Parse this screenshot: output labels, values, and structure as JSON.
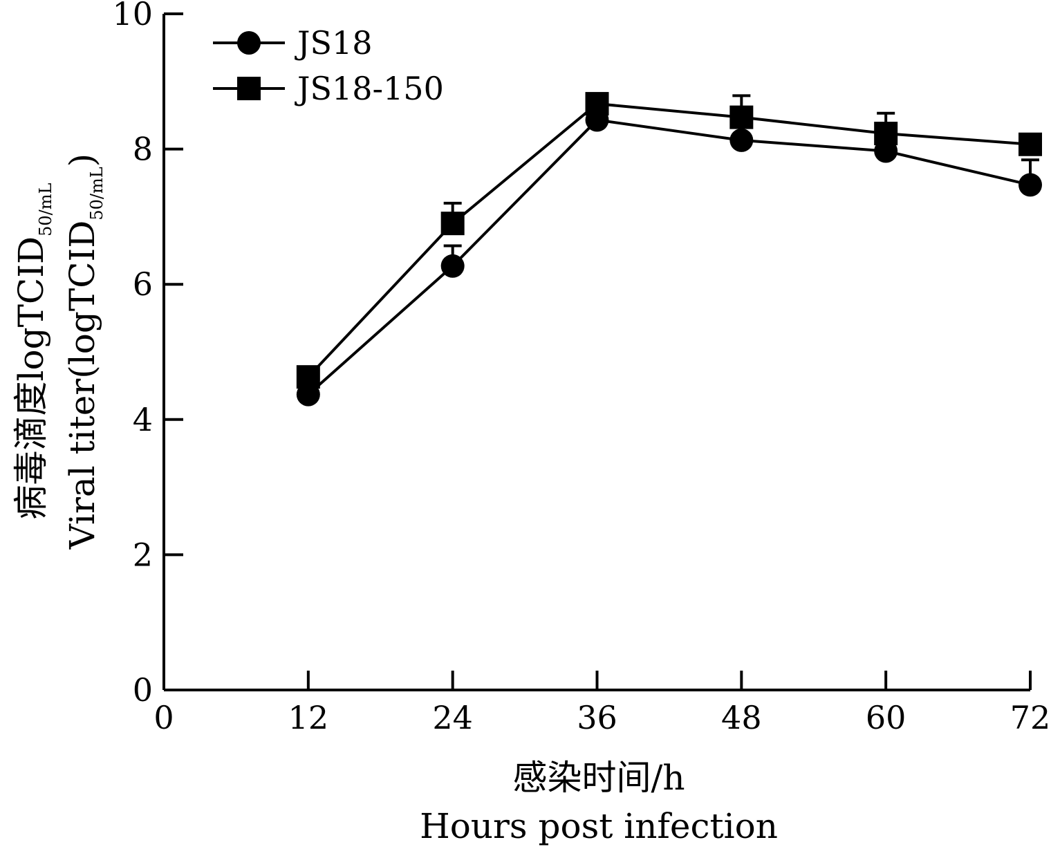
{
  "chart_data": {
    "type": "line",
    "x_ticks": [
      "0",
      "12",
      "24",
      "36",
      "48",
      "60",
      "72"
    ],
    "y_ticks": [
      "0",
      "2",
      "4",
      "6",
      "8",
      "10"
    ],
    "xlim": [
      0,
      72
    ],
    "ylim": [
      0,
      10
    ],
    "xlabel_cn": "感染时间/h",
    "xlabel_en": "Hours post infection",
    "ylabel_cn": "病毒滴度logTCID",
    "ylabel_cn_sub": "50/mL",
    "ylabel_en": "Viral titer(logTCID",
    "ylabel_en_sub": "50/mL",
    "ylabel_en_close": ")",
    "grid": false,
    "legend_position": "top-left",
    "x": [
      12,
      24,
      36,
      48,
      60,
      72
    ],
    "series": [
      {
        "name": "JS18",
        "marker": "circle",
        "values": [
          4.37,
          6.27,
          8.43,
          8.13,
          7.97,
          7.47
        ],
        "error": [
          0.05,
          0.3,
          0.05,
          0.05,
          0.05,
          0.37
        ]
      },
      {
        "name": "JS18-150",
        "marker": "square",
        "values": [
          4.63,
          6.9,
          8.67,
          8.47,
          8.23,
          8.07
        ],
        "error": [
          0.05,
          0.3,
          0.05,
          0.32,
          0.3,
          0.05
        ]
      }
    ],
    "color": "#000000"
  }
}
